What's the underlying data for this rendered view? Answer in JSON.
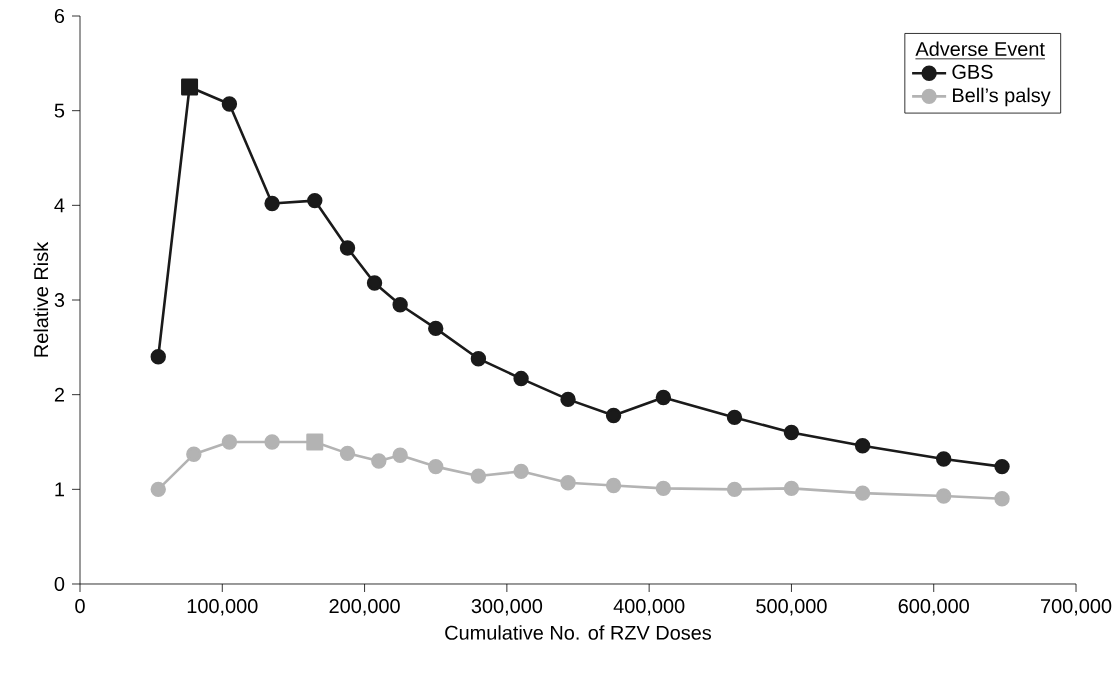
{
  "chart_data": {
    "type": "line",
    "xlabel": "Cumulative No. of RZV Doses",
    "ylabel": "Relative Risk",
    "legend_title": "Adverse Event",
    "legend": "top right",
    "marker": "circle",
    "line_style": "solid",
    "grid": false,
    "xlim": [
      0,
      700000
    ],
    "ylim": [
      0,
      6
    ],
    "xticks": [
      0,
      {
        "value": 100000,
        "label": "100,000"
      },
      {
        "value": 200000,
        "label": "200,000"
      },
      {
        "value": 300000,
        "label": "300,000"
      },
      {
        "value": 400000,
        "label": "400,000"
      },
      {
        "value": 500000,
        "label": "500,000"
      },
      {
        "value": 600000,
        "label": "600,000"
      },
      {
        "value": 700000,
        "label": "700,000"
      }
    ],
    "yticks": [
      0,
      1,
      2,
      3,
      4,
      5,
      6
    ],
    "series": [
      {
        "name": "GBS",
        "color": "#1a1a1a",
        "x": [
          55000,
          77000,
          105000,
          135000,
          165000,
          188000,
          207000,
          225000,
          250000,
          280000,
          310000,
          343000,
          375000,
          410000,
          460000,
          500000,
          550000,
          607000,
          648000
        ],
        "values": [
          2.4,
          5.25,
          5.07,
          4.02,
          4.05,
          3.55,
          3.18,
          2.95,
          2.7,
          2.38,
          2.17,
          1.95,
          1.78,
          1.97,
          1.76,
          1.6,
          1.46,
          1.32,
          1.24
        ]
      },
      {
        "name": "Bell’s palsy",
        "color": "#b3b3b3",
        "x": [
          55000,
          80000,
          105000,
          135000,
          165000,
          188000,
          210000,
          225000,
          250000,
          280000,
          310000,
          343000,
          375000,
          410000,
          460000,
          500000,
          550000,
          607000,
          648000
        ],
        "values": [
          1.0,
          1.37,
          1.5,
          1.5,
          1.5,
          1.38,
          1.3,
          1.36,
          1.24,
          1.14,
          1.19,
          1.07,
          1.04,
          1.01,
          1.0,
          1.01,
          0.96,
          0.93,
          0.9
        ]
      },
      {
        "type": "scatter",
        "marker": "square",
        "color": "#1a1a1a",
        "x": [
          77000
        ],
        "values": [
          5.25
        ]
      },
      {
        "type": "scatter",
        "marker": "square",
        "color": "#b3b3b3",
        "x": [
          165000
        ],
        "values": [
          1.5
        ]
      }
    ]
  }
}
